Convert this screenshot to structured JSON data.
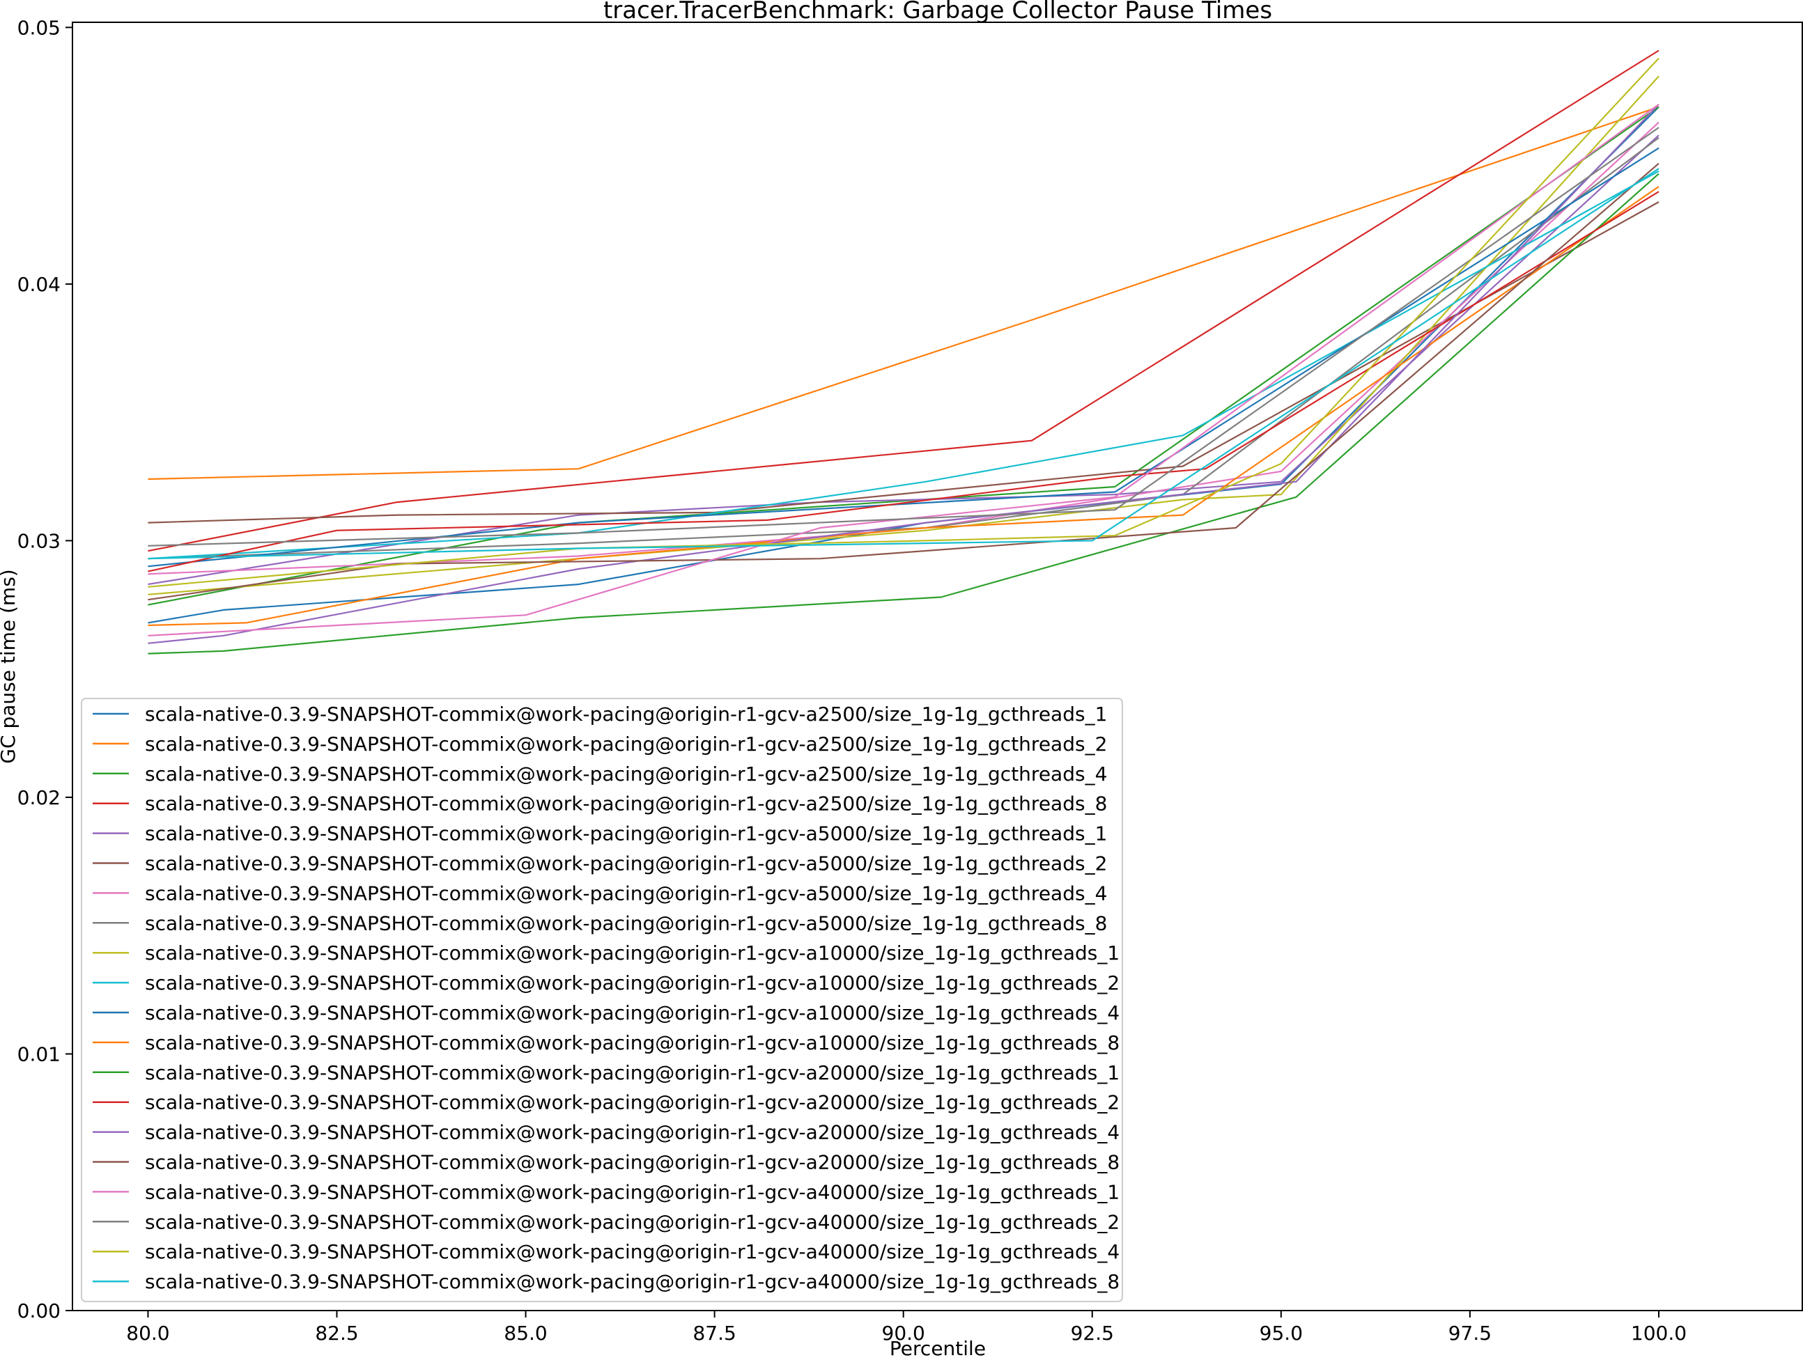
{
  "chart_data": {
    "type": "line",
    "title": "tracer.TracerBenchmark: Garbage Collector Pause Times",
    "xlabel": "Percentile",
    "ylabel": "GC pause time (ms)",
    "xlim": [
      79.0,
      101.9
    ],
    "ylim": [
      0.0,
      0.0502
    ],
    "x_ticks": [
      80.0,
      82.5,
      85.0,
      87.5,
      90.0,
      92.5,
      95.0,
      97.5,
      100.0
    ],
    "x_tick_labels": [
      "80.0",
      "82.5",
      "85.0",
      "87.5",
      "90.0",
      "92.5",
      "95.0",
      "97.5",
      "100.0"
    ],
    "y_ticks": [
      0.0,
      0.01,
      0.02,
      0.03,
      0.04,
      0.05
    ],
    "y_tick_labels": [
      "0.00",
      "0.01",
      "0.02",
      "0.03",
      "0.04",
      "0.05"
    ],
    "grid": false,
    "legend_position": "lower-left",
    "series": [
      {
        "name": "scala-native-0.3.9-SNAPSHOT-commix@work-pacing@origin-r1-gcv-a2500/size_1g-1g_gcthreads_1",
        "color": "#1f77b4",
        "points": [
          [
            80.0,
            0.0268
          ],
          [
            81.0,
            0.0273
          ],
          [
            85.7,
            0.0283
          ],
          [
            90.3,
            0.0307
          ],
          [
            92.8,
            0.0315
          ],
          [
            95.0,
            0.0322
          ],
          [
            100.0,
            0.0469
          ]
        ]
      },
      {
        "name": "scala-native-0.3.9-SNAPSHOT-commix@work-pacing@origin-r1-gcv-a2500/size_1g-1g_gcthreads_2",
        "color": "#ff7f0e",
        "points": [
          [
            80.0,
            0.0324
          ],
          [
            85.7,
            0.0328
          ],
          [
            91.7,
            0.0386
          ],
          [
            100.0,
            0.0469
          ]
        ]
      },
      {
        "name": "scala-native-0.3.9-SNAPSHOT-commix@work-pacing@origin-r1-gcv-a2500/size_1g-1g_gcthreads_4",
        "color": "#2ca02c",
        "points": [
          [
            80.0,
            0.0275
          ],
          [
            85.7,
            0.0307
          ],
          [
            92.8,
            0.0321
          ],
          [
            100.0,
            0.0469
          ]
        ]
      },
      {
        "name": "scala-native-0.3.9-SNAPSHOT-commix@work-pacing@origin-r1-gcv-a2500/size_1g-1g_gcthreads_8",
        "color": "#d62728",
        "points": [
          [
            80.0,
            0.0296
          ],
          [
            83.3,
            0.0315
          ],
          [
            91.7,
            0.0339
          ],
          [
            100.0,
            0.0491
          ]
        ]
      },
      {
        "name": "scala-native-0.3.9-SNAPSHOT-commix@work-pacing@origin-r1-gcv-a5000/size_1g-1g_gcthreads_1",
        "color": "#9467bd",
        "points": [
          [
            80.0,
            0.0283
          ],
          [
            85.7,
            0.031
          ],
          [
            88.9,
            0.0315
          ],
          [
            92.8,
            0.0318
          ],
          [
            95.0,
            0.0323
          ],
          [
            100.0,
            0.0458
          ]
        ]
      },
      {
        "name": "scala-native-0.3.9-SNAPSHOT-commix@work-pacing@origin-r1-gcv-a5000/size_1g-1g_gcthreads_2",
        "color": "#8c564b",
        "points": [
          [
            80.0,
            0.0307
          ],
          [
            83.3,
            0.031
          ],
          [
            87.5,
            0.0311
          ],
          [
            93.7,
            0.0329
          ],
          [
            100.0,
            0.0432
          ]
        ]
      },
      {
        "name": "scala-native-0.3.9-SNAPSHOT-commix@work-pacing@origin-r1-gcv-a5000/size_1g-1g_gcthreads_4",
        "color": "#e377c2",
        "points": [
          [
            80.0,
            0.0287
          ],
          [
            85.7,
            0.0294
          ],
          [
            90.3,
            0.0305
          ],
          [
            95.0,
            0.0327
          ],
          [
            100.0,
            0.0463
          ]
        ]
      },
      {
        "name": "scala-native-0.3.9-SNAPSHOT-commix@work-pacing@origin-r1-gcv-a5000/size_1g-1g_gcthreads_8",
        "color": "#7f7f7f",
        "points": [
          [
            80.0,
            0.0293
          ],
          [
            85.7,
            0.0299
          ],
          [
            90.3,
            0.0305
          ],
          [
            93.7,
            0.0318
          ],
          [
            100.0,
            0.0457
          ]
        ]
      },
      {
        "name": "scala-native-0.3.9-SNAPSHOT-commix@work-pacing@origin-r1-gcv-a10000/size_1g-1g_gcthreads_1",
        "color": "#bcbd22",
        "points": [
          [
            80.0,
            0.0279
          ],
          [
            85.7,
            0.0293
          ],
          [
            90.3,
            0.0304
          ],
          [
            93.7,
            0.0316
          ],
          [
            95.0,
            0.0318
          ],
          [
            100.0,
            0.0481
          ]
        ]
      },
      {
        "name": "scala-native-0.3.9-SNAPSHOT-commix@work-pacing@origin-r1-gcv-a10000/size_1g-1g_gcthreads_2",
        "color": "#17becf",
        "points": [
          [
            80.0,
            0.0293
          ],
          [
            85.7,
            0.0303
          ],
          [
            90.3,
            0.0323
          ],
          [
            93.7,
            0.0341
          ],
          [
            100.0,
            0.0444
          ]
        ]
      },
      {
        "name": "scala-native-0.3.9-SNAPSHOT-commix@work-pacing@origin-r1-gcv-a10000/size_1g-1g_gcthreads_4",
        "color": "#1f77b4",
        "points": [
          [
            80.0,
            0.029
          ],
          [
            85.7,
            0.0307
          ],
          [
            92.8,
            0.0319
          ],
          [
            100.0,
            0.0453
          ]
        ]
      },
      {
        "name": "scala-native-0.3.9-SNAPSHOT-commix@work-pacing@origin-r1-gcv-a10000/size_1g-1g_gcthreads_8",
        "color": "#ff7f0e",
        "points": [
          [
            80.0,
            0.0267
          ],
          [
            81.3,
            0.0268
          ],
          [
            85.7,
            0.0293
          ],
          [
            90.3,
            0.0305
          ],
          [
            93.7,
            0.031
          ],
          [
            100.0,
            0.0438
          ]
        ]
      },
      {
        "name": "scala-native-0.3.9-SNAPSHOT-commix@work-pacing@origin-r1-gcv-a20000/size_1g-1g_gcthreads_1",
        "color": "#2ca02c",
        "points": [
          [
            80.0,
            0.0256
          ],
          [
            81.0,
            0.0257
          ],
          [
            85.7,
            0.027
          ],
          [
            90.5,
            0.0278
          ],
          [
            95.2,
            0.0317
          ],
          [
            100.0,
            0.0443
          ]
        ]
      },
      {
        "name": "scala-native-0.3.9-SNAPSHOT-commix@work-pacing@origin-r1-gcv-a20000/size_1g-1g_gcthreads_2",
        "color": "#d62728",
        "points": [
          [
            80.0,
            0.0288
          ],
          [
            82.5,
            0.0304
          ],
          [
            88.2,
            0.0308
          ],
          [
            92.8,
            0.0325
          ],
          [
            94.0,
            0.0328
          ],
          [
            100.0,
            0.0436
          ]
        ]
      },
      {
        "name": "scala-native-0.3.9-SNAPSHOT-commix@work-pacing@origin-r1-gcv-a20000/size_1g-1g_gcthreads_4",
        "color": "#9467bd",
        "points": [
          [
            80.0,
            0.026
          ],
          [
            81.0,
            0.0263
          ],
          [
            85.7,
            0.0289
          ],
          [
            90.3,
            0.0307
          ],
          [
            95.2,
            0.0323
          ],
          [
            100.0,
            0.047
          ]
        ]
      },
      {
        "name": "scala-native-0.3.9-SNAPSHOT-commix@work-pacing@origin-r1-gcv-a20000/size_1g-1g_gcthreads_8",
        "color": "#8c564b",
        "points": [
          [
            80.0,
            0.0277
          ],
          [
            83.3,
            0.0291
          ],
          [
            88.9,
            0.0293
          ],
          [
            94.4,
            0.0305
          ],
          [
            100.0,
            0.0447
          ]
        ]
      },
      {
        "name": "scala-native-0.3.9-SNAPSHOT-commix@work-pacing@origin-r1-gcv-a40000/size_1g-1g_gcthreads_1",
        "color": "#e377c2",
        "points": [
          [
            80.0,
            0.0263
          ],
          [
            85.0,
            0.0271
          ],
          [
            88.9,
            0.0305
          ],
          [
            92.8,
            0.0317
          ],
          [
            100.0,
            0.047
          ]
        ]
      },
      {
        "name": "scala-native-0.3.9-SNAPSHOT-commix@work-pacing@origin-r1-gcv-a40000/size_1g-1g_gcthreads_2",
        "color": "#7f7f7f",
        "points": [
          [
            80.0,
            0.0298
          ],
          [
            85.7,
            0.0303
          ],
          [
            92.8,
            0.0312
          ],
          [
            100.0,
            0.0461
          ]
        ]
      },
      {
        "name": "scala-native-0.3.9-SNAPSHOT-commix@work-pacing@origin-r1-gcv-a40000/size_1g-1g_gcthreads_4",
        "color": "#bcbd22",
        "points": [
          [
            80.0,
            0.0282
          ],
          [
            85.7,
            0.0297
          ],
          [
            90.3,
            0.03
          ],
          [
            92.8,
            0.0302
          ],
          [
            95.0,
            0.033
          ],
          [
            100.0,
            0.0488
          ]
        ]
      },
      {
        "name": "scala-native-0.3.9-SNAPSHOT-commix@work-pacing@origin-r1-gcv-a40000/size_1g-1g_gcthreads_8",
        "color": "#17becf",
        "points": [
          [
            80.0,
            0.0293
          ],
          [
            85.7,
            0.0297
          ],
          [
            90.3,
            0.0299
          ],
          [
            92.5,
            0.03
          ],
          [
            100.0,
            0.0445
          ]
        ]
      }
    ]
  }
}
